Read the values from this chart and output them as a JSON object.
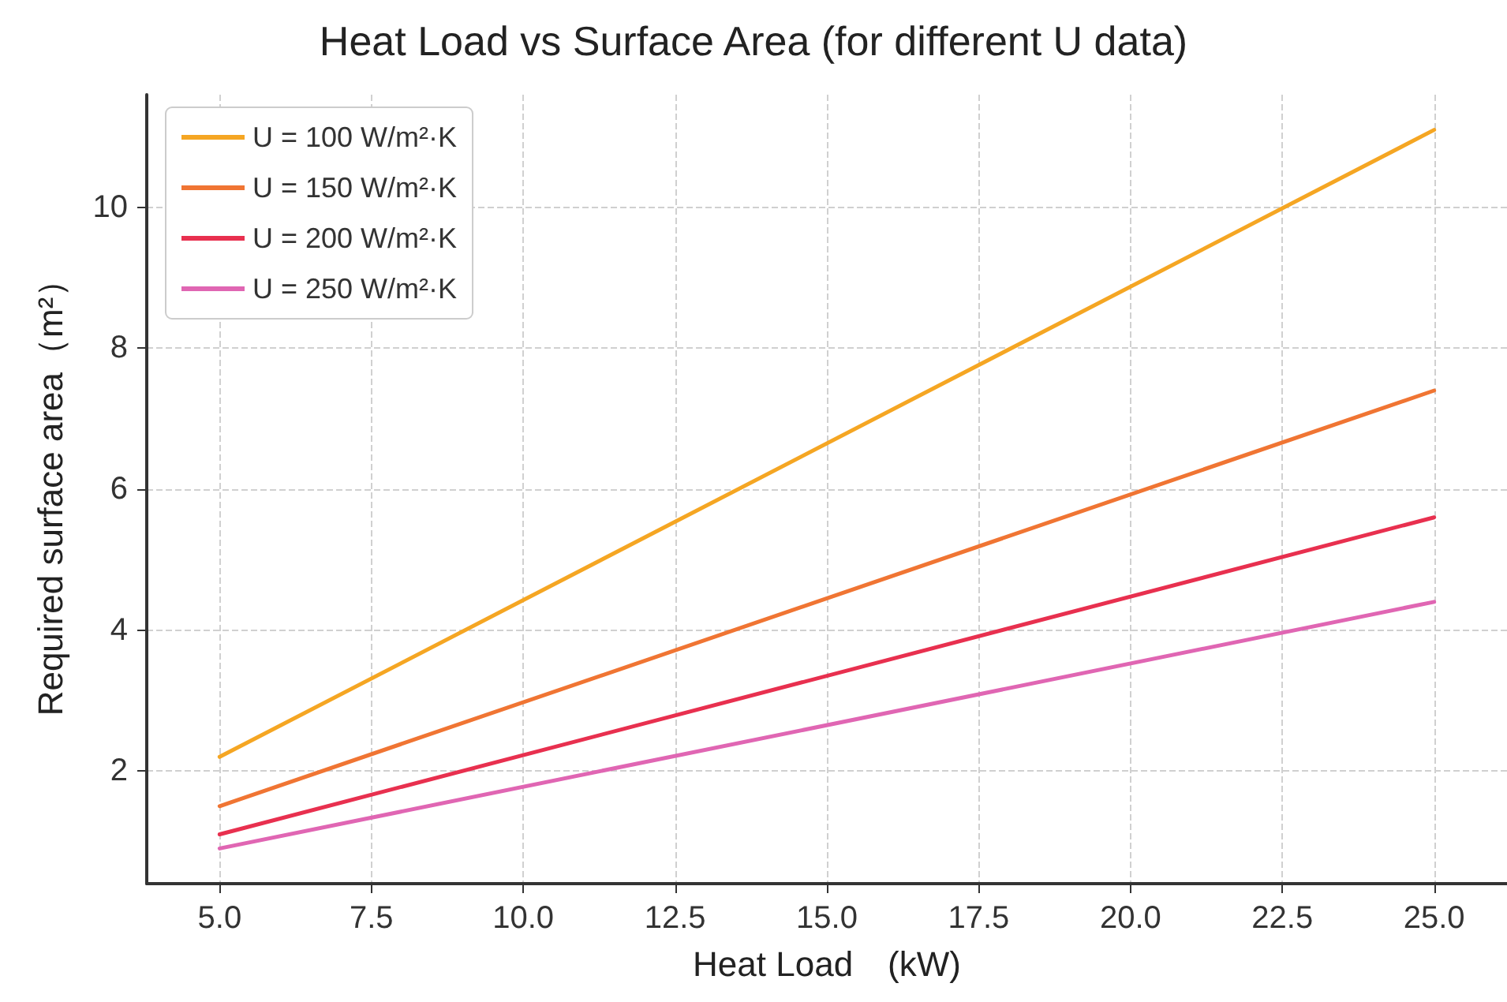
{
  "chart_data": {
    "type": "line",
    "title": "Heat Load vs Surface Area (for different U data)",
    "xlabel": "Heat Load　(kW)",
    "ylabel": "Required surface area（m²）",
    "x": [
      5,
      25
    ],
    "series": [
      {
        "name": "U = 100 W/m²·K",
        "color": "#f5a623",
        "values": [
          2.2,
          11.1
        ]
      },
      {
        "name": "U = 150 W/m²·K",
        "color": "#f07533",
        "values": [
          1.5,
          7.4
        ]
      },
      {
        "name": "U = 200 W/m²·K",
        "color": "#e8304f",
        "values": [
          1.1,
          5.6
        ]
      },
      {
        "name": "U = 250 W/m²·K",
        "color": "#e066b3",
        "values": [
          0.9,
          4.4
        ]
      }
    ],
    "xlim": [
      3.8,
      26.2
    ],
    "ylim": [
      0.4,
      11.6
    ],
    "xticks": [
      {
        "value": 5,
        "label": "5.0"
      },
      {
        "value": 7.5,
        "label": "7.5"
      },
      {
        "value": 10,
        "label": "10.0"
      },
      {
        "value": 12.5,
        "label": "12.5"
      },
      {
        "value": 15,
        "label": "15.0"
      },
      {
        "value": 17.5,
        "label": "17.5"
      },
      {
        "value": 20,
        "label": "20.0"
      },
      {
        "value": 22.5,
        "label": "22.5"
      },
      {
        "value": 25,
        "label": "25.0"
      }
    ],
    "yticks": [
      2,
      4,
      6,
      8,
      10
    ],
    "grid": true,
    "legend": "top left",
    "marker": "none",
    "line_style": "solid"
  }
}
